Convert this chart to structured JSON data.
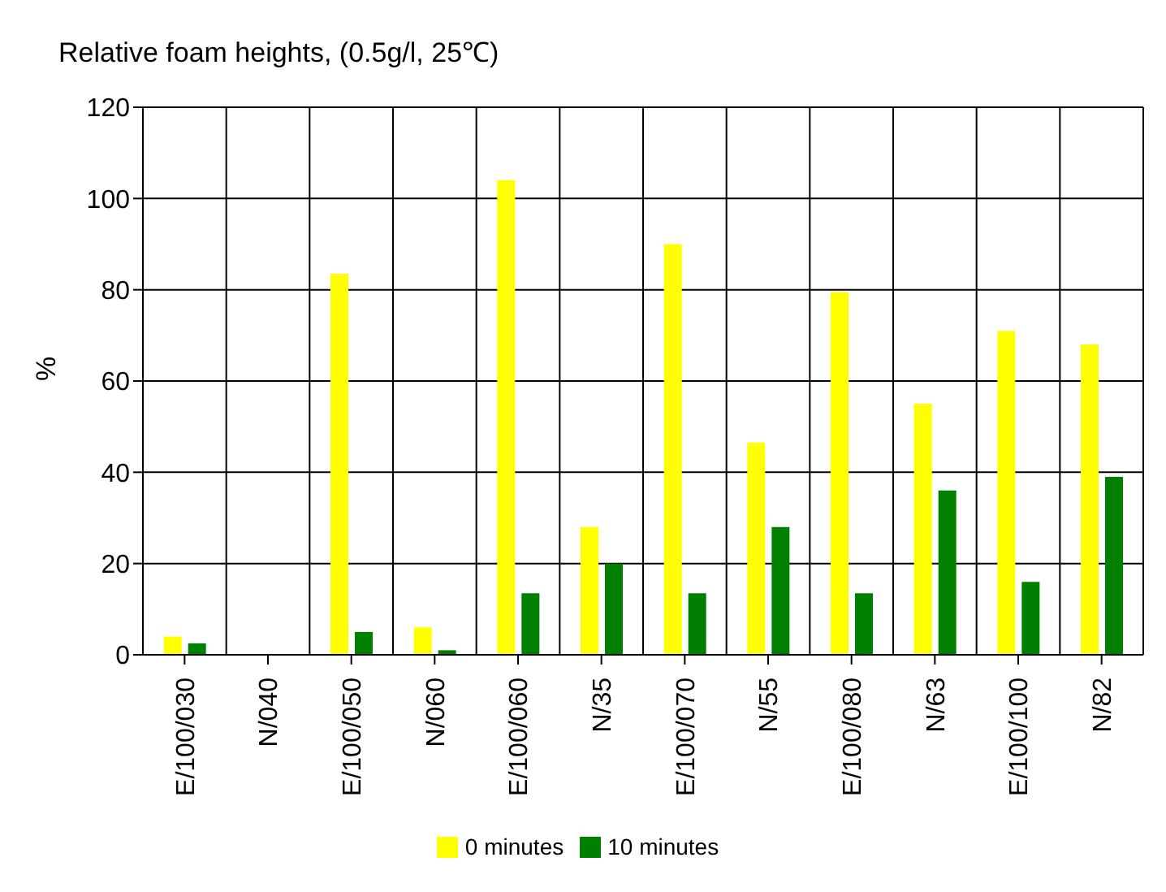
{
  "chart_data": {
    "type": "bar",
    "title": "Relative foam heights, (0.5g/l, 25℃)",
    "ylabel": "%",
    "categories": [
      "E/100/030",
      "N/040",
      "E/100/050",
      "N/060",
      "E/100/060",
      "N/35",
      "E/100/070",
      "N/55",
      "E/100/080",
      "N/63",
      "E/100/100",
      "N/82"
    ],
    "series": [
      {
        "name": "0 minutes",
        "color": "#ffff00",
        "values": [
          4,
          0,
          83.5,
          6,
          104,
          28,
          90,
          46.5,
          79.5,
          55,
          71,
          68
        ]
      },
      {
        "name": "10 minutes",
        "color": "#008000",
        "values": [
          2.5,
          0,
          5,
          1,
          13.5,
          20,
          13.5,
          28,
          13.5,
          36,
          16,
          39
        ]
      }
    ],
    "ylim": [
      0,
      120
    ],
    "yticks": [
      0,
      20,
      40,
      60,
      80,
      100,
      120
    ],
    "grid": true,
    "legend": "bottom"
  }
}
